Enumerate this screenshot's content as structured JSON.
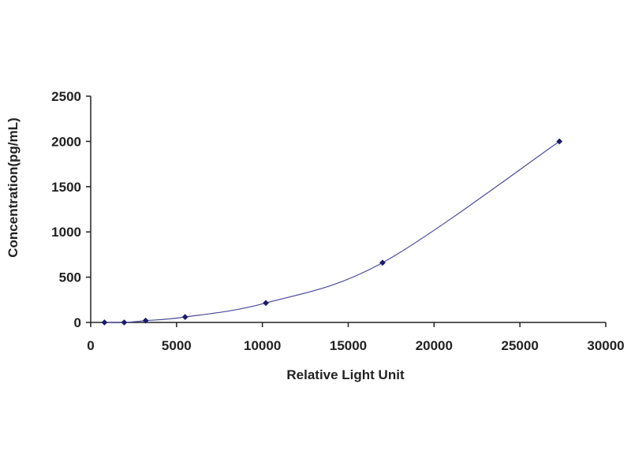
{
  "chart_data": {
    "type": "scatter",
    "xlabel": "Relative Light Unit",
    "ylabel": "Concentration(pg/mL)",
    "xlim": [
      0,
      30000
    ],
    "ylim": [
      0,
      2500
    ],
    "x_ticks": [
      0,
      5000,
      10000,
      15000,
      20000,
      25000,
      30000
    ],
    "y_ticks": [
      0,
      500,
      1000,
      1500,
      2000,
      2500
    ],
    "x_tick_labels": [
      "0",
      "5000",
      "10000",
      "15000",
      "20000",
      "25000",
      "30000"
    ],
    "y_tick_labels": [
      "0",
      "500",
      "1000",
      "1500",
      "2000",
      "2500"
    ],
    "grid": false,
    "legend": "none",
    "series": [
      {
        "marker": "diamond",
        "color": "#1a1a6e",
        "line_color": "#4a4a9a",
        "trendline": "smooth",
        "points": [
          {
            "x": 800,
            "y": 0
          },
          {
            "x": 1950,
            "y": 0
          },
          {
            "x": 3200,
            "y": 20
          },
          {
            "x": 5500,
            "y": 60
          },
          {
            "x": 10200,
            "y": 215
          },
          {
            "x": 17000,
            "y": 660
          },
          {
            "x": 27300,
            "y": 2000
          }
        ]
      }
    ]
  }
}
